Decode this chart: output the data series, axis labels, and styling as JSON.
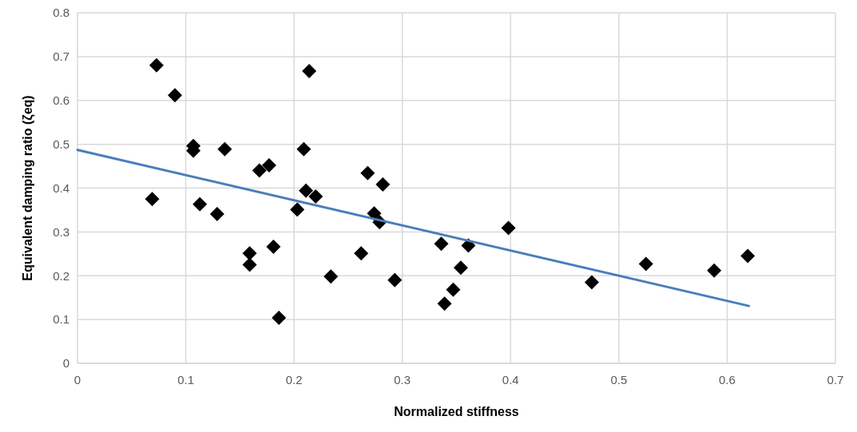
{
  "chart_data": {
    "type": "scatter",
    "xlabel": "Normalized stiffness",
    "ylabel": "Equivalent damping ratio (ζeq)",
    "xlim": [
      0,
      0.7
    ],
    "ylim": [
      0,
      0.8
    ],
    "xticks": [
      0,
      0.1,
      0.2,
      0.3,
      0.4,
      0.5,
      0.6,
      0.7
    ],
    "yticks": [
      0,
      0.1,
      0.2,
      0.3,
      0.4,
      0.5,
      0.6,
      0.7,
      0.8
    ],
    "grid": true,
    "series": [
      {
        "color": "#000000",
        "marker": "diamond",
        "x": [
          0.069,
          0.073,
          0.09,
          0.107,
          0.107,
          0.113,
          0.129,
          0.136,
          0.159,
          0.159,
          0.168,
          0.177,
          0.181,
          0.186,
          0.209,
          0.214,
          0.211,
          0.22,
          0.203,
          0.234,
          0.268,
          0.282,
          0.274,
          0.279,
          0.262,
          0.293,
          0.336,
          0.361,
          0.354,
          0.347,
          0.339,
          0.398,
          0.475,
          0.525,
          0.588,
          0.619
        ],
        "values": [
          0.375,
          0.68,
          0.612,
          0.496,
          0.485,
          0.363,
          0.341,
          0.489,
          0.251,
          0.225,
          0.44,
          0.452,
          0.266,
          0.104,
          0.489,
          0.667,
          0.394,
          0.381,
          0.351,
          0.198,
          0.434,
          0.408,
          0.342,
          0.322,
          0.251,
          0.19,
          0.273,
          0.269,
          0.218,
          0.168,
          0.136,
          0.309,
          0.185,
          0.227,
          0.212,
          0.245
        ]
      },
      {
        "type": "line",
        "color": "#4a7ebb",
        "marker": "none",
        "line_style": "solid",
        "x": [
          0,
          0.62
        ],
        "values": [
          0.487,
          0.131
        ]
      }
    ]
  }
}
